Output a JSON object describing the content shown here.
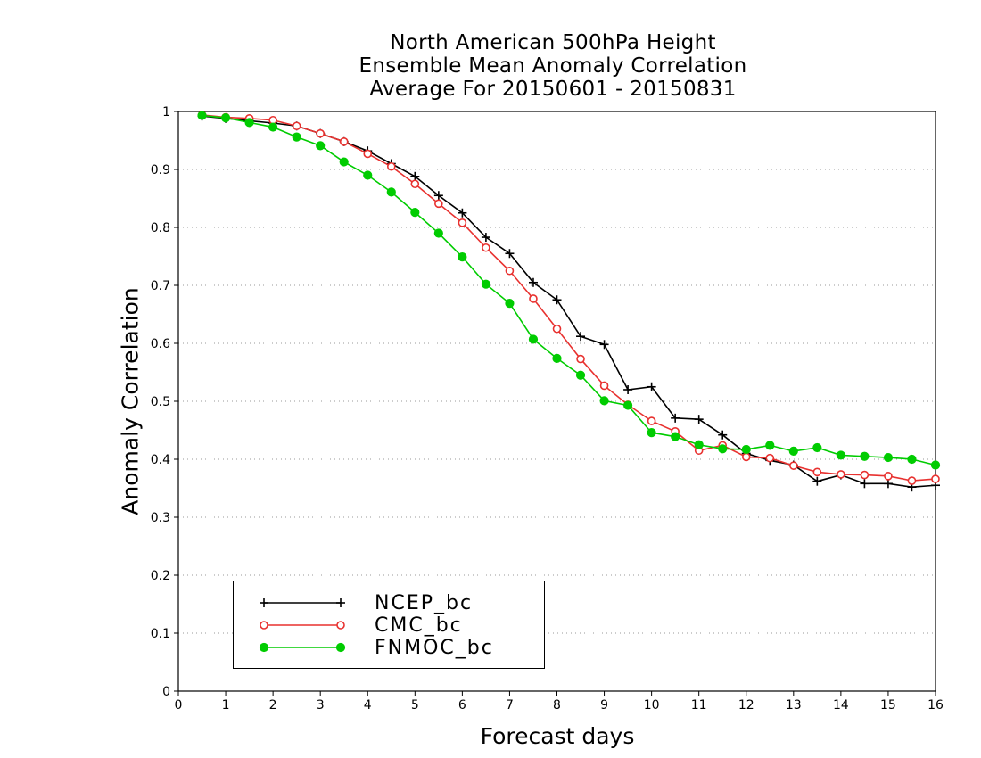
{
  "chart_data": {
    "type": "line",
    "title": [
      "North American 500hPa Height",
      "Ensemble Mean Anomaly Correlation",
      "Average For 20150601 - 20150831"
    ],
    "xlabel": "Forecast days",
    "ylabel": "Anomaly Correlation",
    "xlim": [
      0,
      16
    ],
    "ylim": [
      0,
      1
    ],
    "xticks": [
      "0",
      "1",
      "2",
      "3",
      "4",
      "5",
      "6",
      "7",
      "8",
      "9",
      "10",
      "11",
      "12",
      "13",
      "14",
      "15",
      "16"
    ],
    "yticks": [
      "0",
      "0.1",
      "0.2",
      "0.3",
      "0.4",
      "0.5",
      "0.6",
      "0.7",
      "0.8",
      "0.9",
      "1"
    ],
    "grid": "horizontal dotted",
    "legend_position": "bottom-left",
    "x": [
      0.5,
      1,
      1.5,
      2,
      2.5,
      3,
      3.5,
      4,
      4.5,
      5,
      5.5,
      6,
      6.5,
      7,
      7.5,
      8,
      8.5,
      9,
      9.5,
      10,
      10.5,
      11,
      11.5,
      12,
      12.5,
      13,
      13.5,
      14,
      14.5,
      15,
      15.5,
      16
    ],
    "series": [
      {
        "name": "NCEP_bc",
        "color": "#000000",
        "marker": "plus",
        "values": [
          0.992,
          0.988,
          0.984,
          0.98,
          0.975,
          0.962,
          0.948,
          0.932,
          0.91,
          0.888,
          0.855,
          0.825,
          0.783,
          0.755,
          0.705,
          0.675,
          0.612,
          0.598,
          0.52,
          0.525,
          0.471,
          0.469,
          0.442,
          0.41,
          0.398,
          0.39,
          0.362,
          0.373,
          0.358,
          0.358,
          0.352,
          0.355
        ]
      },
      {
        "name": "CMC_bc",
        "color": "#e8312f",
        "marker": "open-circle",
        "values": [
          0.994,
          0.99,
          0.988,
          0.985,
          0.975,
          0.962,
          0.948,
          0.927,
          0.905,
          0.875,
          0.841,
          0.808,
          0.765,
          0.725,
          0.677,
          0.625,
          0.573,
          0.527,
          0.494,
          0.466,
          0.448,
          0.415,
          0.424,
          0.404,
          0.402,
          0.389,
          0.378,
          0.374,
          0.373,
          0.371,
          0.363,
          0.366
        ]
      },
      {
        "name": "FNMOC_bc",
        "color": "#00cc00",
        "marker": "filled-circle",
        "values": [
          0.993,
          0.989,
          0.981,
          0.973,
          0.956,
          0.941,
          0.913,
          0.89,
          0.861,
          0.826,
          0.79,
          0.749,
          0.702,
          0.669,
          0.607,
          0.574,
          0.545,
          0.501,
          0.493,
          0.446,
          0.439,
          0.425,
          0.418,
          0.417,
          0.424,
          0.414,
          0.42,
          0.407,
          0.405,
          0.403,
          0.4,
          0.39
        ]
      }
    ]
  }
}
